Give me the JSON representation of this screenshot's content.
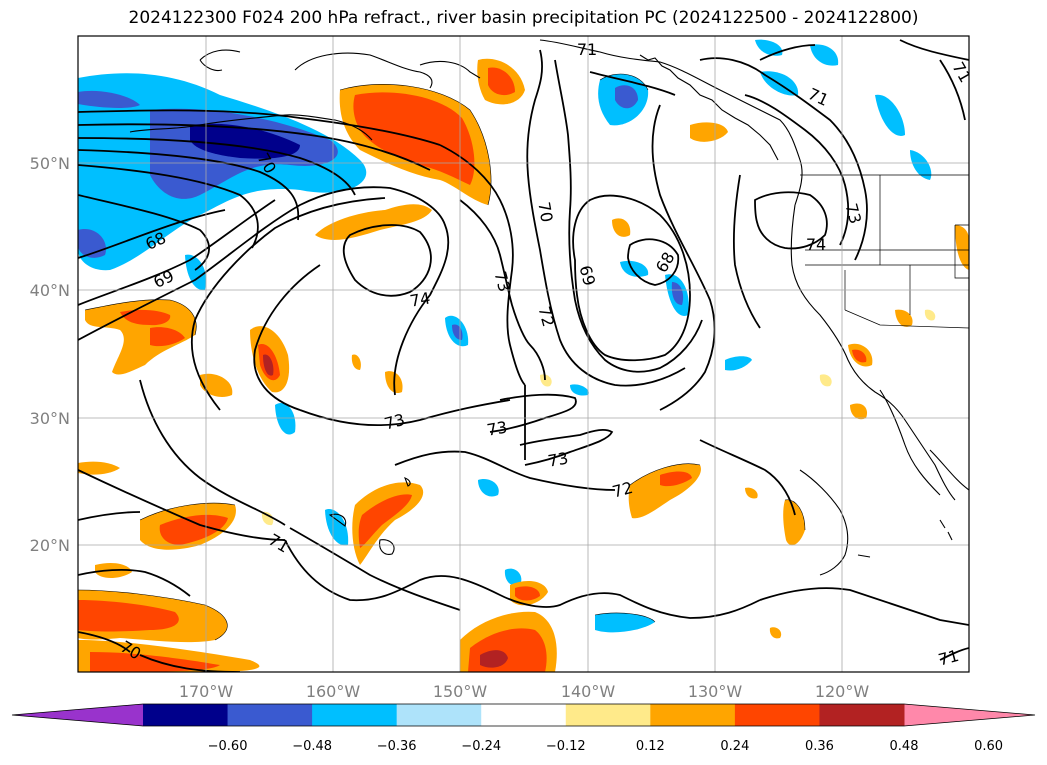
{
  "title": "2024122300 F024 200 hPa refract., river basin precipitation PC (2024122500 - 2024122800)",
  "latitude_labels": [
    "50°N",
    "40°N",
    "30°N",
    "20°N"
  ],
  "longitude_labels": [
    "170°W",
    "160°W",
    "150°W",
    "140°W",
    "130°W",
    "120°W"
  ],
  "contour_labels": [
    "71",
    "71",
    "71",
    "70",
    "68",
    "69",
    "74",
    "73",
    "73",
    "73",
    "70",
    "69",
    "68",
    "72",
    "73",
    "74",
    "72",
    "71",
    "70",
    "71"
  ],
  "colorbar": {
    "tick_labels": [
      "−0.60",
      "−0.48",
      "−0.36",
      "−0.24",
      "−0.12",
      "0.12",
      "0.24",
      "0.36",
      "0.48",
      "0.60"
    ],
    "under_color": "#9933cc",
    "over_color": "#ff88aa",
    "colors": [
      "#00008b",
      "#3a5ad0",
      "#00bfff",
      "#aee3fa",
      "#ffffff",
      "#ffea8a",
      "#ffa500",
      "#ff4500",
      "#b22222"
    ]
  }
}
